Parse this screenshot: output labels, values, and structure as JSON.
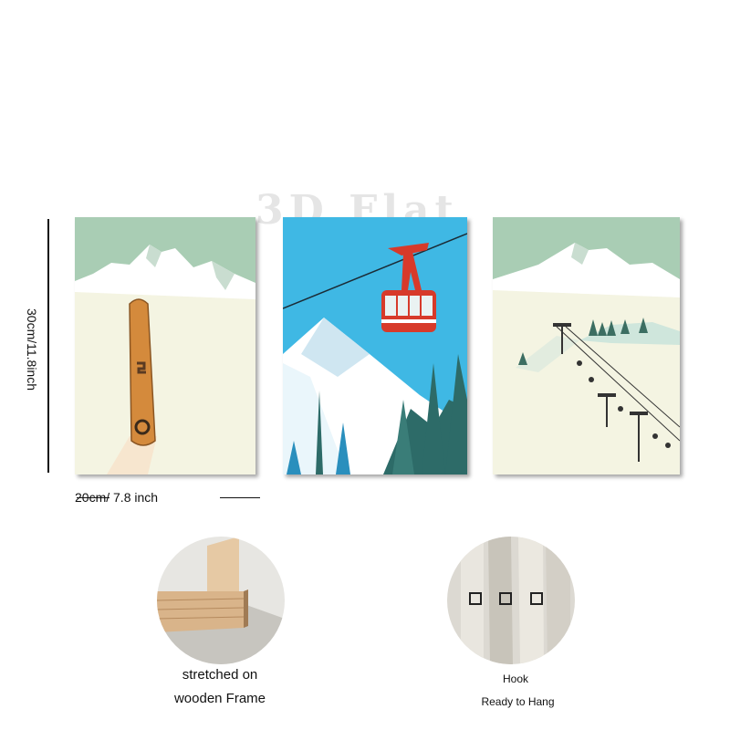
{
  "watermark": "3D Flat",
  "dimensions": {
    "height_label": "30cm/11.8inch",
    "width_label": "20cm/ 7.8 inch"
  },
  "panels": [
    {
      "subject": "snowboard-in-snow",
      "colors": {
        "sky": "#a9cdb4",
        "snow": "#f4f4e2",
        "board": "#d48a3c"
      }
    },
    {
      "subject": "red-cable-car",
      "colors": {
        "sky": "#3fb8e4",
        "cabin": "#d73a2a",
        "trees": "#2d6b68"
      }
    },
    {
      "subject": "chairlift-on-slope",
      "colors": {
        "sky": "#a9cdb4",
        "snow": "#f4f4e2",
        "trees": "#3c6e62"
      }
    }
  ],
  "features": {
    "frame": {
      "caption_line1": "stretched on",
      "caption_line2": "wooden Frame",
      "icon": "wooden-frame-corner"
    },
    "hook": {
      "caption_line1": "Hook",
      "caption_line2": "Ready to Hang",
      "icon": "hanging-hook"
    }
  }
}
